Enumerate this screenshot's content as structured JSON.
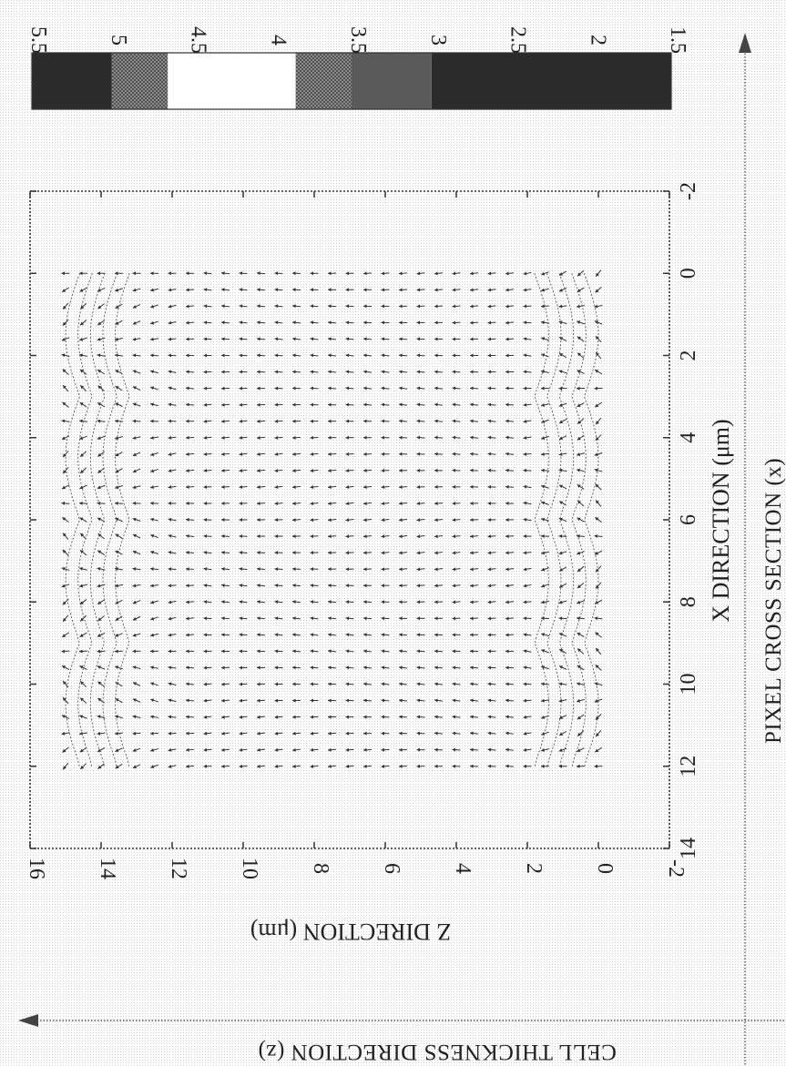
{
  "chart_data": {
    "type": "quiver",
    "title": "",
    "xlabel": "X DIRECTION (μm)",
    "ylabel": "Z DIRECTION (μm)",
    "xticks": [
      "-2",
      "0",
      "2",
      "4",
      "6",
      "8",
      "10",
      "12",
      "14"
    ],
    "yticks": [
      "-2",
      "0",
      "2",
      "4",
      "6",
      "8",
      "10",
      "12",
      "14",
      "16"
    ],
    "xlim": [
      -2,
      14
    ],
    "ylim": [
      -2,
      16
    ],
    "grid": false,
    "vector_field": {
      "x_range": [
        0,
        12
      ],
      "x_step": 0.4,
      "z_range": [
        0,
        15
      ],
      "z_step": 0.5,
      "description_values": "director field of liquid crystal cell"
    },
    "colorbar": {
      "ticks": [
        "5.5",
        "5",
        "4.5",
        "4",
        "3.5",
        "3",
        "2.5",
        "2",
        "1.5"
      ],
      "range": [
        1.5,
        5.5
      ],
      "bands": [
        {
          "from": 1.5,
          "to": 3.0,
          "color": "#2b2b2b"
        },
        {
          "from": 3.0,
          "to": 3.5,
          "color": "#5a5a5a"
        },
        {
          "from": 3.5,
          "to": 3.85,
          "color": "#9a9a9a"
        },
        {
          "from": 3.85,
          "to": 4.65,
          "color": "#ffffff"
        },
        {
          "from": 4.65,
          "to": 5.0,
          "color": "#9a9a9a"
        },
        {
          "from": 5.0,
          "to": 5.5,
          "color": "#2b2b2b"
        }
      ]
    }
  },
  "outer_axes": {
    "horizontal_label": "PIXEL CROSS SECTION (x)",
    "vertical_label": "CELL THICKNESS DIRECTION (z)"
  }
}
